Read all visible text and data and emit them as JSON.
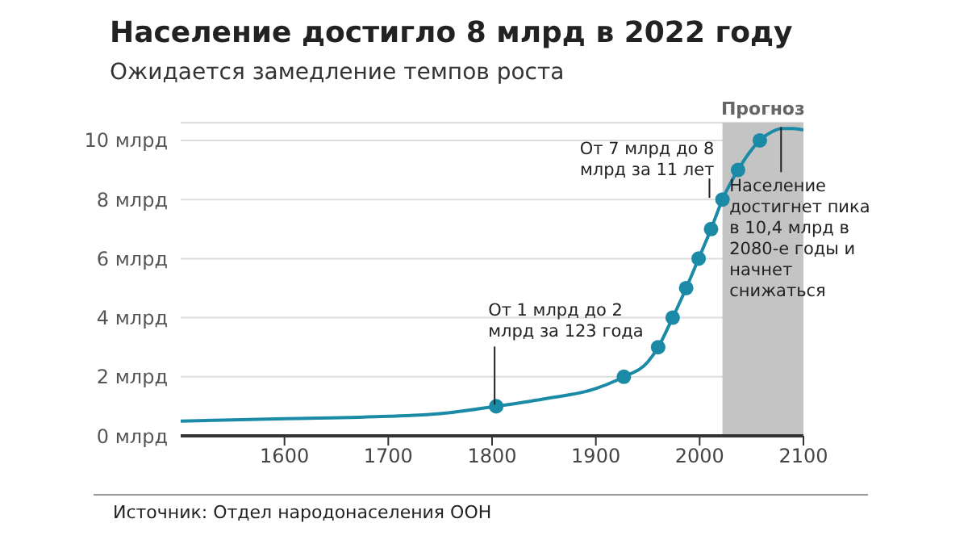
{
  "chart_data": {
    "type": "line",
    "title": "Население достигло 8 млрд в 2022 году",
    "subtitle": "Ожидается замедление темпов роста",
    "xlim": [
      1500,
      2100
    ],
    "xticks": [
      1600,
      1700,
      1800,
      1900,
      2000,
      2100
    ],
    "ylim": [
      0,
      10.6
    ],
    "yticks": [
      {
        "value": 0,
        "label": "0 млрд"
      },
      {
        "value": 2,
        "label": "2 млрд"
      },
      {
        "value": 4,
        "label": "4 млрд"
      },
      {
        "value": 6,
        "label": "6 млрд"
      },
      {
        "value": 8,
        "label": "8 млрд"
      },
      {
        "value": 10,
        "label": "10 млрд"
      }
    ],
    "grid": "y",
    "legend": false,
    "series": [
      {
        "marker": "none",
        "color": "#1b8aa6",
        "x": [
          1500,
          1600,
          1700,
          1750,
          1804,
          1850,
          1900,
          1927,
          1950,
          1960,
          1974,
          1987,
          1999,
          2011,
          2022,
          2037,
          2058,
          2070,
          2080,
          2090,
          2100
        ],
        "values": [
          0.5,
          0.58,
          0.66,
          0.75,
          1.0,
          1.25,
          1.6,
          2.0,
          2.5,
          3.0,
          4.0,
          5.0,
          6.0,
          7.0,
          8.0,
          9.0,
          10.0,
          10.3,
          10.4,
          10.4,
          10.35
        ]
      },
      {
        "type": "scatter",
        "marker": "circle",
        "color": "#1b8aa6",
        "x": [
          1804,
          1927,
          1960,
          1974,
          1987,
          1999,
          2011,
          2022,
          2037,
          2058
        ],
        "values": [
          1.0,
          2.0,
          3.0,
          4.0,
          5.0,
          6.0,
          7.0,
          8.0,
          9.0,
          10.0
        ]
      }
    ],
    "bands": [
      {
        "axis": "x",
        "from": 2022,
        "to": 2100,
        "label": "Прогноз",
        "color": "#c4c4c4"
      }
    ],
    "annotations": [
      {
        "text": "От 1 млрд до 2 млрд за 123 года",
        "x": 1804,
        "y": 1.0
      },
      {
        "text": "От 7 млрд до 8 млрд за 11 лет",
        "x": 2011,
        "y": 8
      },
      {
        "text": "Население достигнет пика в 10,4 млрд в 2080-е годы и начнет снижаться",
        "x": 2080,
        "y": 10.4
      },
      "Источник: Отдел народонаселения ООН"
    ]
  }
}
